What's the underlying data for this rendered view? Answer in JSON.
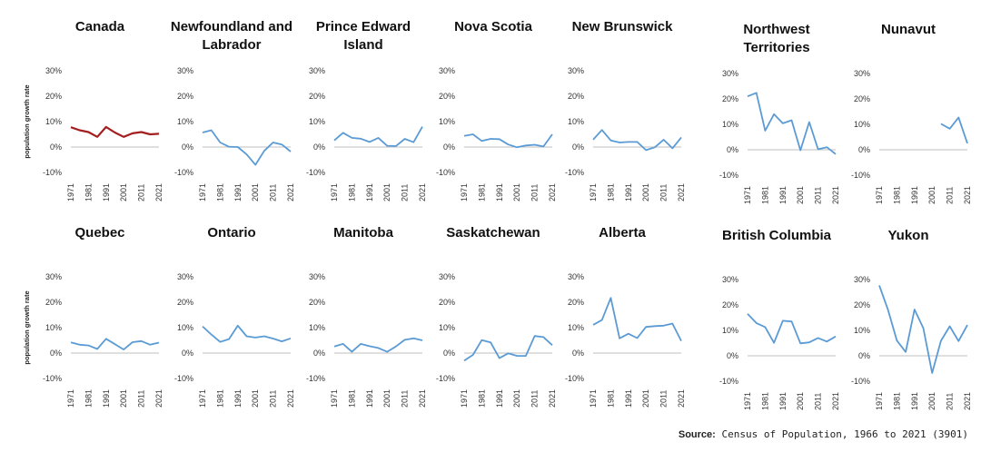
{
  "source": {
    "label": "Source:",
    "text": "Census of Population, 1966 to 2021 (3901)"
  },
  "chart_data": {
    "type": "line",
    "ylabel": "population growth rate",
    "yticks": [
      "30%",
      "20%",
      "10%",
      "0%",
      "-10%"
    ],
    "ylim": [
      -10,
      30
    ],
    "x": [
      1971,
      1976,
      1981,
      1986,
      1991,
      1996,
      2001,
      2006,
      2011,
      2016,
      2021
    ],
    "xticks": [
      "1971",
      "1981",
      "1991",
      "2001",
      "2011",
      "2021"
    ],
    "colors": {
      "canada": "#a31f1f",
      "province": "#5b9bd5",
      "axis": "#bfbfbf"
    },
    "panels": [
      {
        "title": "Canada",
        "values": [
          7.8,
          6.6,
          5.9,
          4.0,
          7.9,
          5.7,
          4.0,
          5.4,
          5.9,
          5.0,
          5.2
        ]
      },
      {
        "title": "Newfoundland and Labrador",
        "values": [
          5.7,
          6.6,
          1.8,
          0.1,
          0.0,
          -2.9,
          -7.0,
          -1.5,
          1.8,
          1.0,
          -1.8
        ]
      },
      {
        "title": "Prince Edward Island",
        "values": [
          2.6,
          5.6,
          3.6,
          3.3,
          2.0,
          3.6,
          0.5,
          0.4,
          3.2,
          1.9,
          8.0
        ]
      },
      {
        "title": "Nova Scotia",
        "values": [
          4.4,
          5.0,
          2.4,
          3.2,
          3.1,
          1.0,
          -0.1,
          0.6,
          0.9,
          0.2,
          5.0
        ]
      },
      {
        "title": "New Brunswick",
        "values": [
          2.9,
          6.7,
          2.6,
          1.8,
          2.0,
          2.0,
          -1.2,
          -0.1,
          2.9,
          -0.5,
          3.8
        ]
      },
      {
        "title": "Northwest Territories",
        "values": [
          21.0,
          22.4,
          7.5,
          14.0,
          10.4,
          11.6,
          -0.2,
          10.9,
          0.2,
          1.0,
          -1.7
        ]
      },
      {
        "title": "Nunavut",
        "values": [
          null,
          null,
          null,
          null,
          null,
          null,
          null,
          10.2,
          8.3,
          12.7,
          2.5
        ]
      },
      {
        "title": "Quebec",
        "values": [
          4.2,
          3.3,
          3.0,
          1.6,
          5.6,
          3.5,
          1.4,
          4.3,
          4.7,
          3.3,
          4.1
        ]
      },
      {
        "title": "Ontario",
        "values": [
          10.5,
          7.3,
          4.4,
          5.5,
          10.8,
          6.6,
          6.1,
          6.6,
          5.7,
          4.6,
          5.8
        ]
      },
      {
        "title": "Manitoba",
        "values": [
          2.6,
          3.6,
          0.5,
          3.6,
          2.7,
          2.0,
          0.5,
          2.6,
          5.2,
          5.8,
          5.0
        ]
      },
      {
        "title": "Saskatchewan",
        "values": [
          -3.0,
          -0.7,
          5.1,
          4.2,
          -2.0,
          -0.1,
          -1.1,
          -1.1,
          6.7,
          6.3,
          3.1
        ]
      },
      {
        "title": "Alberta",
        "values": [
          11.1,
          13.0,
          21.7,
          5.8,
          7.6,
          5.9,
          10.3,
          10.6,
          10.8,
          11.6,
          4.8
        ]
      },
      {
        "title": "British Columbia",
        "values": [
          16.5,
          12.9,
          11.3,
          5.1,
          13.8,
          13.5,
          4.9,
          5.3,
          7.0,
          5.6,
          7.6
        ]
      },
      {
        "title": "Yukon",
        "values": [
          27.7,
          18.0,
          6.0,
          1.5,
          18.2,
          10.9,
          -6.8,
          5.9,
          11.6,
          5.8,
          12.1
        ]
      }
    ]
  }
}
